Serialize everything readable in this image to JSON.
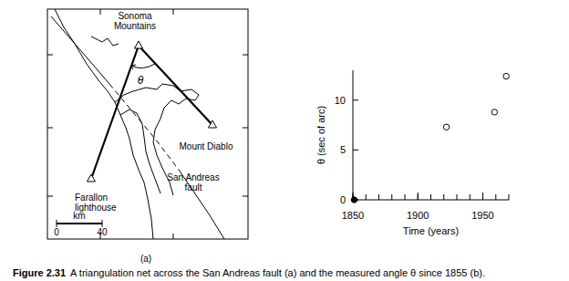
{
  "figure": {
    "caption_number": "Figure 2.31",
    "caption": "A triangulation net across the San Andreas fault (a) and the measured angle θ since 1855 (b)."
  },
  "map": {
    "panel_label": "(a)",
    "places": [
      {
        "label": [
          "Sonoma",
          "Mountains"
        ]
      },
      {
        "label": [
          "Mount Diablo"
        ]
      },
      {
        "label": [
          "Farallon",
          "lighthouse"
        ]
      }
    ],
    "angle_label": "θ",
    "fault_label": [
      "San Andreas",
      "fault"
    ],
    "scale": {
      "unit": "km",
      "ticks": [
        0,
        40
      ]
    }
  },
  "chart_data": {
    "type": "scatter",
    "y_label": "θ (sec of arc)",
    "x_label": "Time (years)",
    "series": [
      {
        "x": [
          1851
        ],
        "values": [
          0
        ],
        "marker": "filled-circle",
        "color": "#000000"
      },
      {
        "x": [
          1922,
          1959,
          1968
        ],
        "values": [
          7.3,
          8.8,
          12.4
        ],
        "marker": "open-circle",
        "color": "#000000"
      }
    ],
    "xlim": [
      1850,
      1970
    ],
    "xticks": [
      1850,
      1900,
      1950
    ],
    "ylim": [
      0,
      13
    ],
    "yticks": [
      0,
      5,
      10
    ]
  }
}
